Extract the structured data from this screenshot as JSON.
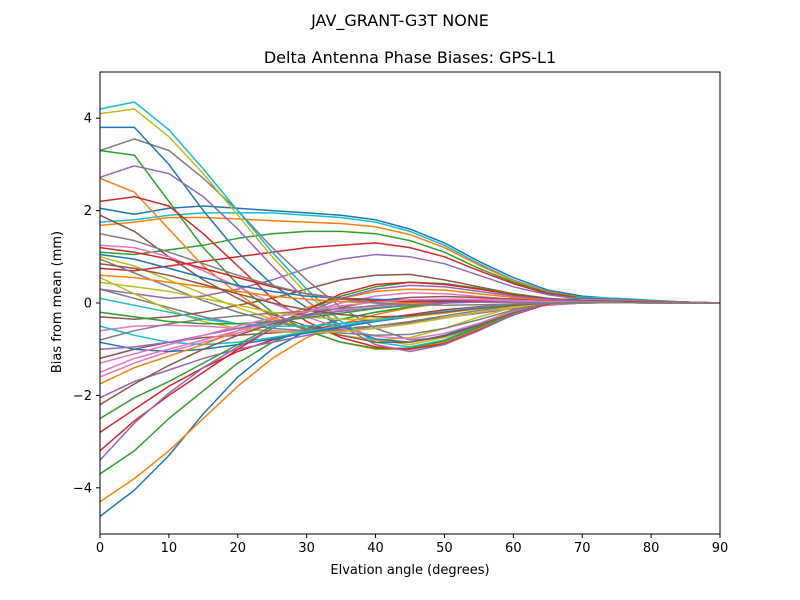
{
  "chart_data": {
    "type": "line",
    "suptitle": "JAV_GRANT-G3T   NONE",
    "title": "Delta Antenna Phase Biases: GPS-L1",
    "xlabel": "Elvation angle (degrees)",
    "ylabel": "Bias from mean (mm)",
    "xlim": [
      0,
      90
    ],
    "ylim": [
      -5,
      5
    ],
    "xticks": [
      0,
      10,
      20,
      30,
      40,
      50,
      60,
      70,
      80,
      90
    ],
    "yticks": [
      -4,
      -2,
      0,
      2,
      4
    ],
    "grid": false,
    "legend": "none",
    "x": [
      0,
      5,
      10,
      15,
      20,
      25,
      30,
      35,
      40,
      45,
      50,
      55,
      60,
      65,
      70,
      75,
      80,
      85,
      90
    ],
    "colors": [
      "#1f77b4",
      "#ff7f0e",
      "#2ca02c",
      "#d62728",
      "#9467bd",
      "#8c564b",
      "#e377c2",
      "#7f7f7f",
      "#bcbd22",
      "#17becf"
    ],
    "series": [
      {
        "values": [
          -4.62,
          -4.05,
          -3.3,
          -2.4,
          -1.6,
          -1.0,
          -0.6,
          -0.35,
          -0.2,
          -0.1,
          0.0,
          0.05,
          0.08,
          0.08,
          0.07,
          0.05,
          0.03,
          0.01,
          0.0
        ]
      },
      {
        "values": [
          -4.3,
          -3.8,
          -3.2,
          -2.5,
          -1.8,
          -1.2,
          -0.75,
          -0.45,
          -0.25,
          -0.1,
          0.0,
          0.05,
          0.07,
          0.07,
          0.06,
          0.05,
          0.03,
          0.01,
          0.0
        ]
      },
      {
        "values": [
          -3.7,
          -3.2,
          -2.5,
          -1.9,
          -1.3,
          -0.85,
          -0.55,
          -0.35,
          -0.2,
          -0.08,
          0.02,
          0.07,
          0.09,
          0.08,
          0.07,
          0.05,
          0.03,
          0.01,
          0.0
        ]
      },
      {
        "values": [
          -2.8,
          -2.3,
          -1.8,
          -1.4,
          -1.05,
          -0.8,
          -0.6,
          -0.45,
          -0.35,
          -0.25,
          -0.15,
          -0.08,
          -0.03,
          0.0,
          0.01,
          0.01,
          0.01,
          0.0,
          0.0
        ]
      },
      {
        "values": [
          -2.05,
          -1.7,
          -1.45,
          -1.2,
          -1.0,
          -0.85,
          -0.7,
          -0.6,
          -0.5,
          -0.42,
          -0.32,
          -0.22,
          -0.12,
          -0.05,
          0.0,
          0.01,
          0.01,
          0.0,
          0.0
        ]
      },
      {
        "values": [
          -1.2,
          -1.0,
          -0.85,
          -0.75,
          -0.7,
          -0.65,
          -0.6,
          -0.55,
          -0.5,
          -0.42,
          -0.32,
          -0.2,
          -0.1,
          -0.04,
          0.0,
          0.01,
          0.01,
          0.0,
          0.0
        ]
      },
      {
        "values": [
          -0.6,
          -0.5,
          -0.48,
          -0.5,
          -0.55,
          -0.6,
          -0.62,
          -0.6,
          -0.55,
          -0.45,
          -0.32,
          -0.2,
          -0.1,
          -0.04,
          0.0,
          0.01,
          0.01,
          0.0,
          0.0
        ]
      },
      {
        "values": [
          0.3,
          0.1,
          -0.1,
          -0.3,
          -0.45,
          -0.55,
          -0.6,
          -0.58,
          -0.5,
          -0.4,
          -0.28,
          -0.16,
          -0.07,
          -0.02,
          0.0,
          0.01,
          0.0,
          0.0,
          0.0
        ]
      },
      {
        "values": [
          1.0,
          0.8,
          0.5,
          0.2,
          -0.1,
          -0.35,
          -0.55,
          -0.7,
          -0.8,
          -0.75,
          -0.55,
          -0.3,
          -0.1,
          0.02,
          0.06,
          0.05,
          0.03,
          0.01,
          0.0
        ]
      },
      {
        "values": [
          1.75,
          1.8,
          1.9,
          1.95,
          1.95,
          1.95,
          1.9,
          1.85,
          1.75,
          1.55,
          1.25,
          0.85,
          0.5,
          0.25,
          0.12,
          0.07,
          0.04,
          0.02,
          0.0
        ]
      },
      {
        "values": [
          2.05,
          1.92,
          2.05,
          2.1,
          2.05,
          2.0,
          1.95,
          1.9,
          1.8,
          1.6,
          1.3,
          0.9,
          0.55,
          0.28,
          0.15,
          0.09,
          0.05,
          0.02,
          0.0
        ]
      },
      {
        "values": [
          1.68,
          1.75,
          1.85,
          1.85,
          1.82,
          1.78,
          1.75,
          1.72,
          1.65,
          1.48,
          1.2,
          0.82,
          0.48,
          0.24,
          0.12,
          0.07,
          0.04,
          0.02,
          0.0
        ]
      },
      {
        "values": [
          1.1,
          1.05,
          1.15,
          1.25,
          1.4,
          1.5,
          1.55,
          1.55,
          1.5,
          1.35,
          1.1,
          0.75,
          0.45,
          0.22,
          0.11,
          0.06,
          0.03,
          0.01,
          0.0
        ]
      },
      {
        "values": [
          0.75,
          0.7,
          0.8,
          0.9,
          1.0,
          1.1,
          1.2,
          1.25,
          1.3,
          1.2,
          1.0,
          0.7,
          0.42,
          0.2,
          0.1,
          0.05,
          0.03,
          0.01,
          0.0
        ]
      },
      {
        "values": [
          0.3,
          0.2,
          0.1,
          0.15,
          0.3,
          0.5,
          0.75,
          0.95,
          1.05,
          1.0,
          0.85,
          0.6,
          0.35,
          0.18,
          0.08,
          0.04,
          0.02,
          0.01,
          0.0
        ]
      },
      {
        "values": [
          -0.3,
          -0.35,
          -0.3,
          -0.2,
          -0.05,
          0.1,
          0.3,
          0.5,
          0.6,
          0.62,
          0.5,
          0.35,
          0.2,
          0.1,
          0.05,
          0.03,
          0.02,
          0.01,
          0.0
        ]
      },
      {
        "values": [
          -1.6,
          -1.3,
          -1.05,
          -0.85,
          -0.65,
          -0.45,
          -0.2,
          0.0,
          0.15,
          0.22,
          0.2,
          0.14,
          0.08,
          0.04,
          0.02,
          0.01,
          0.01,
          0.0,
          0.0
        ]
      },
      {
        "values": [
          3.3,
          3.55,
          3.3,
          2.7,
          2.0,
          1.2,
          0.5,
          -0.1,
          -0.55,
          -0.8,
          -0.75,
          -0.5,
          -0.2,
          0.0,
          0.1,
          0.08,
          0.05,
          0.02,
          0.0
        ]
      },
      {
        "values": [
          4.1,
          4.2,
          3.6,
          2.8,
          1.9,
          1.0,
          0.2,
          -0.4,
          -0.8,
          -0.9,
          -0.75,
          -0.45,
          -0.15,
          0.05,
          0.12,
          0.1,
          0.06,
          0.02,
          0.0
        ]
      },
      {
        "values": [
          4.2,
          4.35,
          3.75,
          2.9,
          2.0,
          1.1,
          0.3,
          -0.4,
          -0.85,
          -0.95,
          -0.8,
          -0.5,
          -0.2,
          0.03,
          0.12,
          0.1,
          0.06,
          0.02,
          0.0
        ]
      },
      {
        "values": [
          3.8,
          3.8,
          3.0,
          2.0,
          1.1,
          0.4,
          -0.1,
          -0.5,
          -0.78,
          -0.85,
          -0.7,
          -0.45,
          -0.18,
          0.02,
          0.1,
          0.08,
          0.05,
          0.02,
          0.0
        ]
      },
      {
        "values": [
          2.7,
          2.4,
          1.6,
          0.8,
          0.2,
          -0.3,
          -0.6,
          -0.85,
          -1.0,
          -1.0,
          -0.85,
          -0.55,
          -0.25,
          -0.02,
          0.08,
          0.07,
          0.04,
          0.02,
          0.0
        ]
      },
      {
        "values": [
          3.3,
          3.2,
          2.2,
          1.2,
          0.4,
          -0.2,
          -0.6,
          -0.85,
          -0.98,
          -0.98,
          -0.82,
          -0.52,
          -0.22,
          0.0,
          0.08,
          0.07,
          0.04,
          0.02,
          0.0
        ]
      },
      {
        "values": [
          2.2,
          2.3,
          2.1,
          1.5,
          0.8,
          0.1,
          -0.4,
          -0.75,
          -0.95,
          -1.0,
          -0.88,
          -0.58,
          -0.26,
          -0.02,
          0.07,
          0.06,
          0.04,
          0.02,
          0.0
        ]
      },
      {
        "values": [
          2.72,
          2.97,
          2.8,
          2.3,
          1.6,
          0.8,
          0.05,
          -0.5,
          -0.9,
          -1.05,
          -0.9,
          -0.6,
          -0.25,
          0.0,
          0.08,
          0.07,
          0.04,
          0.02,
          0.0
        ]
      },
      {
        "values": [
          1.9,
          1.55,
          1.0,
          0.5,
          0.1,
          -0.25,
          -0.5,
          -0.7,
          -0.85,
          -0.85,
          -0.72,
          -0.48,
          -0.2,
          0.0,
          0.07,
          0.06,
          0.04,
          0.02,
          0.0
        ]
      },
      {
        "values": [
          1.25,
          1.2,
          1.0,
          0.7,
          0.35,
          0.0,
          -0.3,
          -0.55,
          -0.72,
          -0.78,
          -0.66,
          -0.44,
          -0.18,
          0.01,
          0.07,
          0.06,
          0.04,
          0.02,
          0.0
        ]
      },
      {
        "values": [
          0.95,
          0.65,
          0.35,
          0.05,
          -0.2,
          -0.4,
          -0.55,
          -0.65,
          -0.7,
          -0.68,
          -0.55,
          -0.36,
          -0.15,
          0.0,
          0.05,
          0.05,
          0.03,
          0.01,
          0.0
        ]
      },
      {
        "values": [
          0.55,
          0.2,
          -0.15,
          -0.4,
          -0.55,
          -0.62,
          -0.65,
          -0.62,
          -0.55,
          -0.45,
          -0.33,
          -0.2,
          -0.08,
          0.0,
          0.03,
          0.03,
          0.02,
          0.01,
          0.0
        ]
      },
      {
        "values": [
          -0.5,
          -0.7,
          -0.85,
          -0.9,
          -0.85,
          -0.75,
          -0.62,
          -0.5,
          -0.38,
          -0.28,
          -0.18,
          -0.1,
          -0.04,
          0.0,
          0.02,
          0.02,
          0.01,
          0.0,
          0.0
        ]
      },
      {
        "values": [
          -0.85,
          -1.0,
          -1.05,
          -1.0,
          -0.9,
          -0.78,
          -0.65,
          -0.52,
          -0.4,
          -0.3,
          -0.2,
          -0.11,
          -0.05,
          0.0,
          0.02,
          0.02,
          0.01,
          0.0,
          0.0
        ]
      },
      {
        "values": [
          -1.75,
          -1.4,
          -1.15,
          -0.9,
          -0.6,
          -0.35,
          -0.1,
          0.1,
          0.25,
          0.3,
          0.28,
          0.2,
          0.12,
          0.06,
          0.03,
          0.02,
          0.01,
          0.0,
          0.0
        ]
      },
      {
        "values": [
          -2.5,
          -2.05,
          -1.7,
          -1.3,
          -0.9,
          -0.5,
          -0.15,
          0.15,
          0.35,
          0.45,
          0.42,
          0.32,
          0.2,
          0.1,
          0.05,
          0.03,
          0.02,
          0.01,
          0.0
        ]
      },
      {
        "values": [
          -3.2,
          -2.55,
          -2.0,
          -1.5,
          -1.0,
          -0.55,
          -0.15,
          0.2,
          0.4,
          0.45,
          0.4,
          0.3,
          0.18,
          0.09,
          0.05,
          0.03,
          0.02,
          0.01,
          0.0
        ]
      },
      {
        "values": [
          -3.4,
          -2.6,
          -1.95,
          -1.4,
          -0.95,
          -0.55,
          -0.2,
          0.1,
          0.3,
          0.38,
          0.35,
          0.25,
          0.15,
          0.08,
          0.04,
          0.02,
          0.01,
          0.0,
          0.0
        ]
      },
      {
        "values": [
          -2.2,
          -1.75,
          -1.35,
          -1.0,
          -0.7,
          -0.45,
          -0.25,
          -0.1,
          0.05,
          0.12,
          0.14,
          0.12,
          0.08,
          0.04,
          0.02,
          0.01,
          0.0,
          0.0,
          0.0
        ]
      },
      {
        "values": [
          -1.5,
          -1.2,
          -1.0,
          -0.8,
          -0.6,
          -0.42,
          -0.28,
          -0.15,
          -0.05,
          0.03,
          0.08,
          0.08,
          0.06,
          0.03,
          0.02,
          0.01,
          0.0,
          0.0,
          0.0
        ]
      },
      {
        "values": [
          -0.8,
          -0.6,
          -0.45,
          -0.35,
          -0.28,
          -0.22,
          -0.18,
          -0.12,
          -0.06,
          0.0,
          0.04,
          0.05,
          0.04,
          0.02,
          0.01,
          0.01,
          0.0,
          0.0,
          0.0
        ]
      },
      {
        "values": [
          0.45,
          0.35,
          0.25,
          0.1,
          -0.05,
          -0.2,
          -0.3,
          -0.35,
          -0.35,
          -0.3,
          -0.22,
          -0.12,
          -0.04,
          0.01,
          0.03,
          0.02,
          0.01,
          0.0,
          0.0
        ]
      },
      {
        "values": [
          0.1,
          -0.05,
          -0.2,
          -0.35,
          -0.45,
          -0.5,
          -0.5,
          -0.45,
          -0.38,
          -0.28,
          -0.18,
          -0.1,
          -0.03,
          0.01,
          0.02,
          0.02,
          0.01,
          0.0,
          0.0
        ]
      },
      {
        "values": [
          1.05,
          0.95,
          0.75,
          0.55,
          0.38,
          0.25,
          0.15,
          0.1,
          0.08,
          0.06,
          0.05,
          0.05,
          0.04,
          0.03,
          0.02,
          0.01,
          0.01,
          0.0,
          0.0
        ]
      },
      {
        "values": [
          0.6,
          0.55,
          0.45,
          0.35,
          0.25,
          0.15,
          0.08,
          0.03,
          0.0,
          0.0,
          0.01,
          0.02,
          0.02,
          0.02,
          0.01,
          0.01,
          0.0,
          0.0,
          0.0
        ]
      },
      {
        "values": [
          -0.2,
          -0.3,
          -0.4,
          -0.45,
          -0.45,
          -0.4,
          -0.32,
          -0.22,
          -0.12,
          -0.05,
          0.0,
          0.03,
          0.03,
          0.02,
          0.01,
          0.01,
          0.0,
          0.0,
          0.0
        ]
      },
      {
        "values": [
          1.2,
          1.1,
          0.95,
          0.75,
          0.55,
          0.35,
          0.2,
          0.1,
          0.05,
          0.03,
          0.03,
          0.04,
          0.04,
          0.03,
          0.02,
          0.01,
          0.01,
          0.0,
          0.0
        ]
      },
      {
        "values": [
          -1.0,
          -0.95,
          -0.85,
          -0.7,
          -0.55,
          -0.4,
          -0.28,
          -0.18,
          -0.1,
          -0.04,
          0.0,
          0.02,
          0.02,
          0.02,
          0.01,
          0.01,
          0.0,
          0.0,
          0.0
        ]
      },
      {
        "values": [
          0.85,
          0.75,
          0.6,
          0.4,
          0.2,
          0.0,
          -0.15,
          -0.25,
          -0.3,
          -0.28,
          -0.2,
          -0.12,
          -0.05,
          0.0,
          0.02,
          0.02,
          0.01,
          0.0,
          0.0
        ]
      },
      {
        "values": [
          -1.3,
          -1.1,
          -0.9,
          -0.7,
          -0.5,
          -0.32,
          -0.18,
          -0.06,
          0.02,
          0.07,
          0.08,
          0.07,
          0.05,
          0.03,
          0.02,
          0.01,
          0.0,
          0.0,
          0.0
        ]
      },
      {
        "values": [
          1.5,
          1.35,
          1.1,
          0.85,
          0.6,
          0.38,
          0.2,
          0.08,
          0.0,
          -0.04,
          -0.05,
          -0.04,
          -0.02,
          0.0,
          0.01,
          0.01,
          0.0,
          0.0,
          0.0
        ]
      }
    ]
  }
}
